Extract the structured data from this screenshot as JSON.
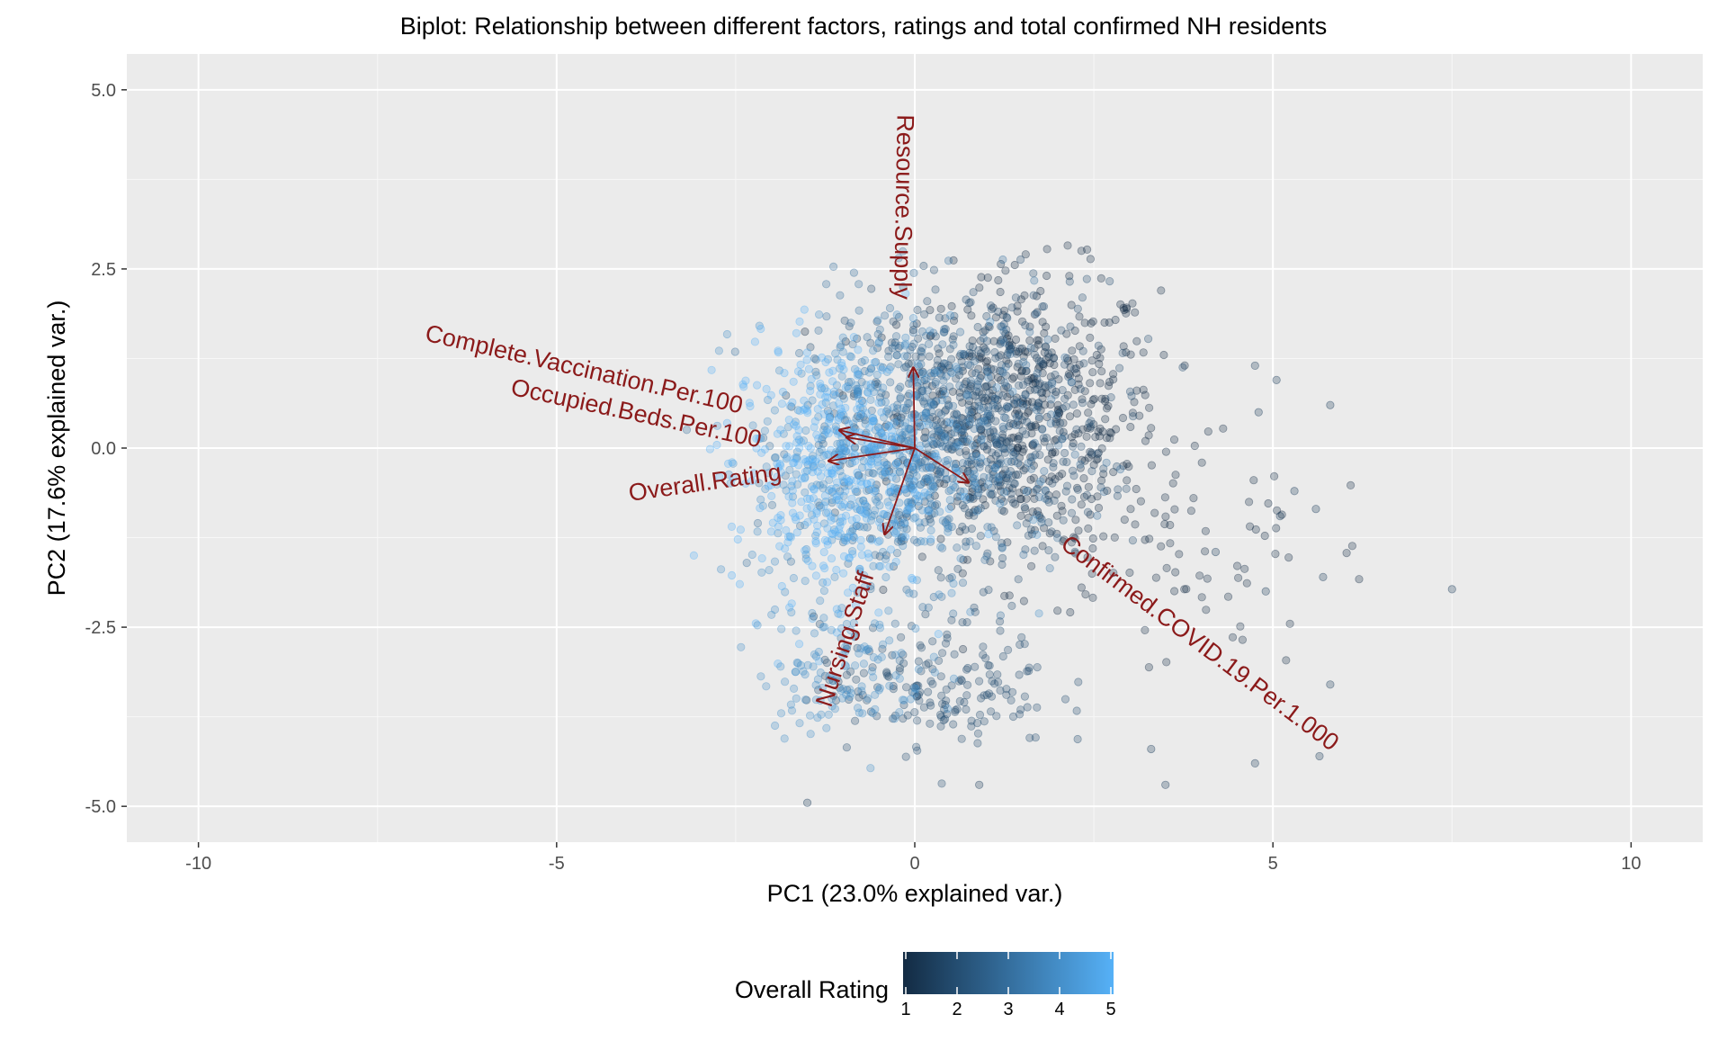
{
  "chart_data": {
    "type": "scatter",
    "title": "Biplot: Relationship between different factors, ratings and total confirmed NH residents",
    "xlabel": "PC1 (23.0% explained var.)",
    "ylabel": "PC2 (17.6% explained var.)",
    "xlim": [
      -11,
      11
    ],
    "ylim": [
      -5.5,
      5.5
    ],
    "xticks": [
      -10,
      -5,
      0,
      5,
      10
    ],
    "xtick_labels": [
      "-10",
      "-5",
      "0",
      "5",
      "10"
    ],
    "yticks": [
      -5.0,
      -2.5,
      0.0,
      2.5,
      5.0
    ],
    "ytick_labels": [
      "-5.0",
      "-2.5",
      "0.0",
      "2.5",
      "5.0"
    ],
    "grid": true,
    "point_color_variable": "Overall Rating",
    "legend": {
      "title": "Overall Rating",
      "placement": "bottom",
      "min": 1,
      "max": 5,
      "ticks": [
        "1",
        "2",
        "3",
        "4",
        "5"
      ],
      "low_color": "#132B43",
      "high_color": "#56B1F7"
    },
    "loading_vectors": [
      {
        "name": "Resource.Supply",
        "x": -0.02,
        "y": 1.12
      },
      {
        "name": "Complete.Vaccination.Per.100",
        "x": -1.05,
        "y": 0.25
      },
      {
        "name": "Occupied.Beds.Per.100",
        "x": -0.95,
        "y": 0.15
      },
      {
        "name": "Overall.Rating",
        "x": -1.2,
        "y": -0.18
      },
      {
        "name": "Nursing.Staff",
        "x": -0.42,
        "y": -1.2
      },
      {
        "name": "Confirmed.COVID.19.Per.1.000",
        "x": 0.75,
        "y": -0.48
      }
    ],
    "series_clusters": [
      {
        "rating": 1,
        "center": [
          1.6,
          0.5
        ],
        "spread": [
          1.2,
          1.3
        ],
        "count": 500
      },
      {
        "rating": 2,
        "center": [
          0.9,
          0.35
        ],
        "spread": [
          1.2,
          1.3
        ],
        "count": 500
      },
      {
        "rating": 3,
        "center": [
          0.2,
          0.1
        ],
        "spread": [
          1.2,
          1.3
        ],
        "count": 450
      },
      {
        "rating": 4,
        "center": [
          -0.6,
          -0.2
        ],
        "spread": [
          1.1,
          1.3
        ],
        "count": 420
      },
      {
        "rating": 5,
        "center": [
          -1.2,
          -0.3
        ],
        "spread": [
          0.9,
          1.2
        ],
        "count": 400
      },
      {
        "rating": 2,
        "center": [
          0.3,
          -3.3
        ],
        "spread": [
          1.1,
          0.6
        ],
        "count": 180
      },
      {
        "rating": 4,
        "center": [
          -1.0,
          -3.1
        ],
        "spread": [
          0.8,
          0.6
        ],
        "count": 120
      },
      {
        "rating": 1,
        "center": [
          3.5,
          -1.3
        ],
        "spread": [
          1.4,
          1.2
        ],
        "count": 90
      }
    ],
    "outliers": [
      [
        7.5,
        -1.97
      ],
      [
        5.8,
        0.6
      ],
      [
        5.7,
        -1.8
      ],
      [
        5.8,
        -3.3
      ],
      [
        5.65,
        -4.3
      ],
      [
        4.75,
        -4.4
      ],
      [
        4.9,
        -2.0
      ],
      [
        4.75,
        1.15
      ],
      [
        5.05,
        0.95
      ],
      [
        5.6,
        -0.85
      ],
      [
        5.3,
        -0.6
      ],
      [
        5.1,
        -0.95
      ],
      [
        4.8,
        0.5
      ],
      [
        4.2,
        -1.45
      ],
      [
        3.5,
        -4.7
      ],
      [
        3.3,
        -4.2
      ],
      [
        0.9,
        -4.7
      ],
      [
        -1.5,
        -4.95
      ]
    ]
  }
}
